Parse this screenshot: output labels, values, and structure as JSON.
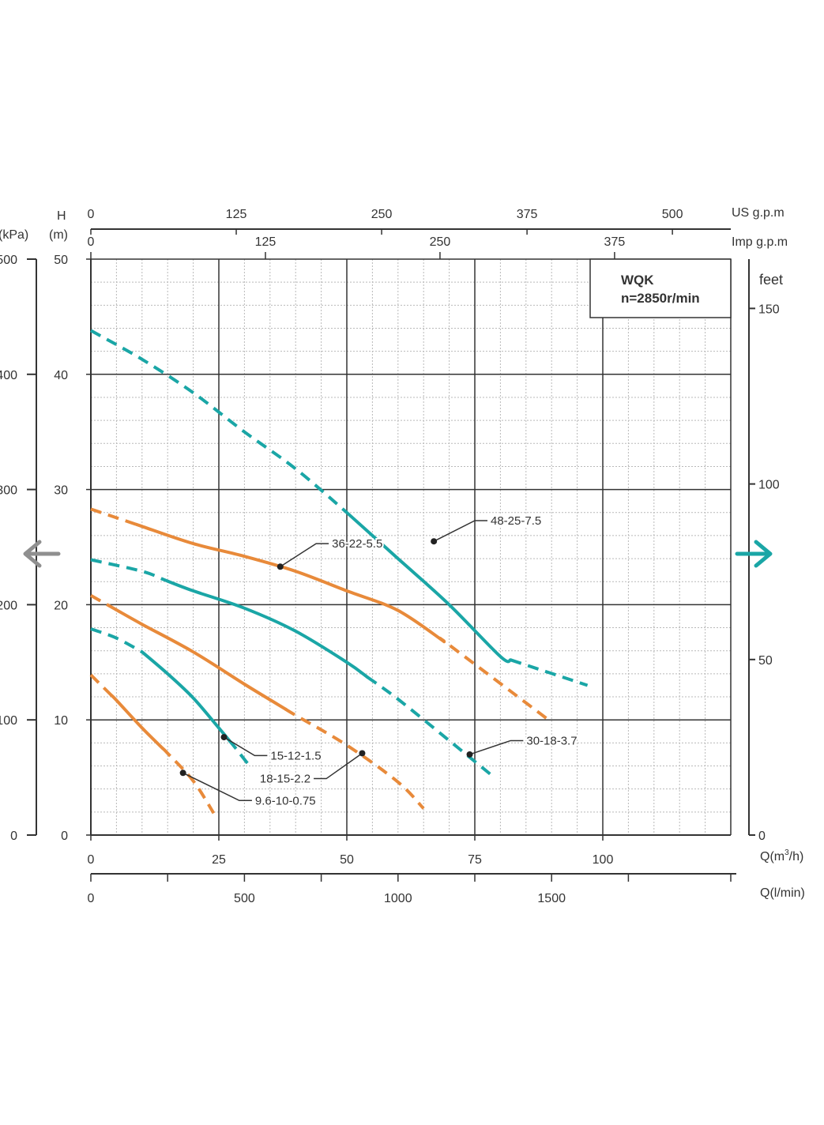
{
  "colors": {
    "teal": "#1aa6a6",
    "orange": "#e88a3a",
    "grid_minor": "#b9b9b9",
    "grid_major": "#333333",
    "arrow_left": "#8f8f8f",
    "arrow_right": "#1aa6a6"
  },
  "nav": {
    "prev_icon": "arrow-left-icon",
    "next_icon": "arrow-right-icon"
  },
  "chart_data": {
    "type": "line",
    "title": "WQK",
    "subtitle": "n=2850r/min",
    "xlabel": "Q(m³/h)",
    "xlabel_base": "Q(m",
    "xlabel_sup": "3",
    "xlabel_tail": "/h)",
    "ylabel": "H (m)",
    "ylabel_H": "H",
    "ylabel_unit": "(m)",
    "ylabel_kpa": "(kPa)",
    "xlim": [
      0,
      125
    ],
    "ylim": [
      0,
      50
    ],
    "grid": true,
    "x_ticks": [
      0,
      25,
      50,
      75,
      100
    ],
    "y_ticks": [
      0,
      10,
      20,
      30,
      40,
      50
    ],
    "kpa_ticks": [
      {
        "h": 0,
        "label": "0"
      },
      {
        "h": 10,
        "label": "100"
      },
      {
        "h": 20,
        "label": "200"
      },
      {
        "h": 30,
        "label": "300"
      },
      {
        "h": 40,
        "label": "400"
      },
      {
        "h": 50,
        "label": "500"
      }
    ],
    "feet_axis": {
      "label": "feet",
      "ticks": [
        {
          "h": 0,
          "label": "0"
        },
        {
          "h": 15.24,
          "label": "50"
        },
        {
          "h": 30.48,
          "label": "100"
        },
        {
          "h": 45.72,
          "label": "150"
        }
      ]
    },
    "us_gpm_axis": {
      "label": "US g.p.m",
      "ticks": [
        {
          "q": 0,
          "label": "0"
        },
        {
          "q": 28.4,
          "label": "125"
        },
        {
          "q": 56.8,
          "label": "250"
        },
        {
          "q": 85.2,
          "label": "375"
        },
        {
          "q": 113.6,
          "label": "500"
        }
      ]
    },
    "imp_gpm_axis": {
      "label": "Imp g.p.m",
      "ticks": [
        {
          "q": 0,
          "label": "0"
        },
        {
          "q": 34.1,
          "label": "125"
        },
        {
          "q": 68.2,
          "label": "250"
        },
        {
          "q": 102.3,
          "label": "375"
        }
      ]
    },
    "lmin_axis": {
      "label": "Q(l/min)",
      "ticks": [
        {
          "q": 0,
          "label": "0"
        },
        {
          "q": 30,
          "label": "500"
        },
        {
          "q": 60,
          "label": "1000"
        },
        {
          "q": 90,
          "label": "1500"
        }
      ],
      "minor_ticks": [
        15,
        45,
        75,
        105,
        125
      ]
    },
    "series": [
      {
        "name": "48-25-7.5",
        "color": "teal",
        "points": [
          [
            0,
            43.8
          ],
          [
            10,
            41.3
          ],
          [
            20,
            38.4
          ],
          [
            30,
            35.0
          ],
          [
            40,
            31.8
          ],
          [
            50,
            28.0
          ],
          [
            60,
            24.0
          ],
          [
            70,
            20.0
          ],
          [
            80,
            15.5
          ],
          [
            97,
            13.0
          ]
        ],
        "solid_range": [
          50,
          82
        ],
        "marker": [
          67,
          25.5
        ],
        "label_anchor": [
          75,
          27.3
        ],
        "label_side": "right"
      },
      {
        "name": "36-22-5.5",
        "color": "orange",
        "points": [
          [
            0,
            28.3
          ],
          [
            10,
            26.8
          ],
          [
            20,
            25.3
          ],
          [
            30,
            24.2
          ],
          [
            40,
            22.9
          ],
          [
            50,
            21.2
          ],
          [
            60,
            19.5
          ],
          [
            70,
            16.5
          ],
          [
            90,
            9.8
          ]
        ],
        "solid_range": [
          9,
          69
        ],
        "marker": [
          37,
          23.3
        ],
        "label_anchor": [
          44,
          25.3
        ],
        "label_side": "right"
      },
      {
        "name": "30-18-3.7",
        "color": "teal",
        "points": [
          [
            0,
            23.9
          ],
          [
            10,
            22.9
          ],
          [
            20,
            21.2
          ],
          [
            30,
            19.7
          ],
          [
            40,
            17.7
          ],
          [
            50,
            15.0
          ],
          [
            60,
            11.8
          ],
          [
            70,
            8.2
          ],
          [
            78,
            5.3
          ]
        ],
        "solid_range": [
          14,
          54
        ],
        "marker": [
          74,
          7.0
        ],
        "label_anchor": [
          82,
          8.2
        ],
        "label_side": "right"
      },
      {
        "name": "18-15-2.2",
        "color": "orange",
        "points": [
          [
            0,
            20.8
          ],
          [
            10,
            18.3
          ],
          [
            20,
            15.9
          ],
          [
            30,
            13.1
          ],
          [
            40,
            10.4
          ],
          [
            50,
            7.8
          ],
          [
            60,
            4.6
          ],
          [
            65,
            2.3
          ]
        ],
        "solid_range": [
          5,
          38
        ],
        "marker": [
          53,
          7.1
        ],
        "label_anchor": [
          46,
          4.9
        ],
        "label_side": "left"
      },
      {
        "name": "15-12-1.5",
        "color": "teal",
        "points": [
          [
            0,
            17.9
          ],
          [
            5,
            17.1
          ],
          [
            10,
            15.9
          ],
          [
            15,
            14.0
          ],
          [
            20,
            11.9
          ],
          [
            25,
            9.3
          ],
          [
            28,
            7.7
          ],
          [
            31,
            6.0
          ]
        ],
        "solid_range": [
          10,
          27
        ],
        "marker": [
          26,
          8.5
        ],
        "label_anchor": [
          32,
          6.9
        ],
        "label_side": "right"
      },
      {
        "name": "9.6-10-0.75",
        "color": "orange",
        "points": [
          [
            0,
            13.9
          ],
          [
            5,
            11.7
          ],
          [
            10,
            9.3
          ],
          [
            15,
            7.1
          ],
          [
            20,
            4.7
          ],
          [
            24,
            1.9
          ]
        ],
        "solid_range": [
          4,
          14
        ],
        "marker": [
          18,
          5.4
        ],
        "label_anchor": [
          29,
          3.0
        ],
        "label_side": "right"
      }
    ]
  }
}
